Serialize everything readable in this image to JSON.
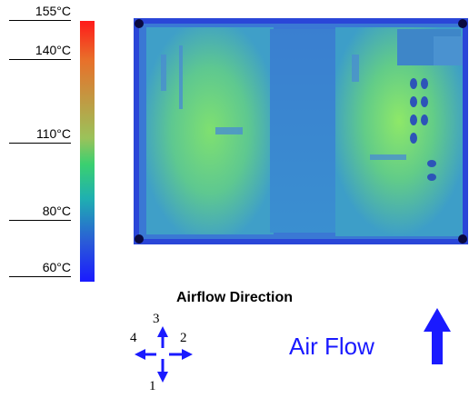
{
  "scale": {
    "labels": [
      "155°C",
      "140°C",
      "110°C",
      "80°C",
      "60°C"
    ],
    "colors": {
      "hot": "#ff1a1a",
      "warm": "#9bc25a",
      "mid": "#3ad070",
      "cool": "#2a5ad8",
      "cold": "#1a1aff"
    }
  },
  "diagram": {
    "title": "Airflow Direction",
    "airflow_label": "Air Flow",
    "directions": [
      "1",
      "2",
      "3",
      "4"
    ],
    "arrow_color": "#1a1aff"
  }
}
